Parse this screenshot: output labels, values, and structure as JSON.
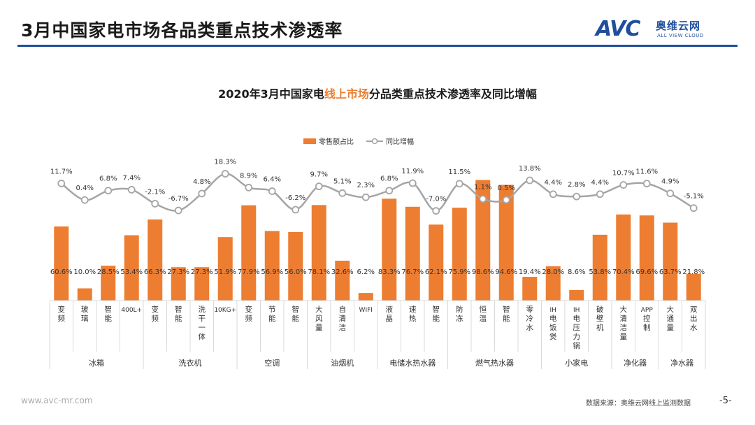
{
  "page": {
    "title": "3月中国家电市场各品类重点技术渗透率",
    "website": "www.avc-mr.com",
    "source": "数据来源：奥维云网线上监测数据",
    "page_number": "-5-"
  },
  "logo": {
    "mark": "AVC",
    "cn": "奥维云网",
    "en": "ALL VIEW CLOUD"
  },
  "colors": {
    "bar": "#ED7D31",
    "line": "#A5A5A5",
    "title_bar": "#1F4E9C",
    "highlight": "#ED7D31"
  },
  "chart_data": {
    "type": "bar+line",
    "title_parts": [
      "2020年3月中国家电",
      "线上市场",
      "分品类重点技术渗透率及同比增幅"
    ],
    "legend": [
      "零售额占比",
      "同比增幅"
    ],
    "categories": [
      "变频",
      "玻璃",
      "智能",
      "400L+",
      "变频",
      "智能",
      "洗干一体",
      "10KG+",
      "变频",
      "节能",
      "智能",
      "大风量",
      "自清洁",
      "WIFI",
      "液晶",
      "速热",
      "智能",
      "防冻",
      "恒温",
      "智能",
      "零冷水",
      "IH电饭煲",
      "IH电压力锅",
      "破壁机",
      "大清洁量",
      "APP控制",
      "大通量",
      "双出水"
    ],
    "groups": [
      {
        "name": "冰箱",
        "count": 4
      },
      {
        "name": "洗衣机",
        "count": 4
      },
      {
        "name": "空调",
        "count": 3
      },
      {
        "name": "油烟机",
        "count": 3
      },
      {
        "name": "电储水热水器",
        "count": 3
      },
      {
        "name": "燃气热水器",
        "count": 4
      },
      {
        "name": "小家电",
        "count": 3
      },
      {
        "name": "净化器",
        "count": 2
      },
      {
        "name": "净水器",
        "count": 2
      }
    ],
    "series": [
      {
        "name": "零售额占比",
        "type": "bar",
        "unit": "%",
        "values": [
          60.6,
          10.0,
          28.5,
          53.4,
          66.3,
          27.3,
          27.3,
          51.9,
          77.9,
          56.9,
          56.0,
          78.1,
          32.6,
          6.2,
          83.3,
          76.7,
          62.1,
          75.9,
          98.6,
          94.6,
          19.4,
          28.0,
          8.6,
          53.8,
          70.4,
          69.6,
          63.7,
          21.8
        ]
      },
      {
        "name": "同比增幅",
        "type": "line",
        "unit": "%",
        "values": [
          11.7,
          0.4,
          6.8,
          7.4,
          -2.1,
          -6.7,
          4.8,
          18.3,
          8.9,
          6.4,
          -6.2,
          9.7,
          5.1,
          2.3,
          6.8,
          11.9,
          -7.0,
          11.5,
          1.1,
          0.5,
          13.8,
          4.4,
          2.8,
          4.4,
          10.7,
          11.6,
          4.9,
          -5.1
        ]
      }
    ],
    "bar_labels": [
      "60.6%",
      "10.0%",
      "28.5%",
      "53.4%",
      "66.3%",
      "27.3%",
      "27.3%",
      "51.9%",
      "77.9%",
      "56.9%",
      "56.0%",
      "78.1%",
      "32.6%",
      "6.2%",
      "83.3%",
      "76.7%",
      "62.1%",
      "75.9%",
      "98.6%",
      "94.6%",
      "19.4%",
      "28.0%",
      "8.6%",
      "53.8%",
      "70.4%",
      "69.6%",
      "63.7%",
      "21.8%"
    ],
    "line_labels": [
      "11.7%",
      "0.4%",
      "6.8%",
      "7.4%",
      "-2.1%",
      "-6.7%",
      "4.8%",
      "18.3%",
      "8.9%",
      "6.4%",
      "-6.2%",
      "9.7%",
      "5.1%",
      "2.3%",
      "6.8%",
      "11.9%",
      "-7.0%",
      "11.5%",
      "1.1%",
      "0.5%",
      "13.8%",
      "4.4%",
      "2.8%",
      "4.4%",
      "10.7%",
      "11.6%",
      "4.9%",
      "-5.1%"
    ],
    "bar_ylim": [
      0,
      100
    ],
    "line_ylim": [
      -20,
      20
    ]
  }
}
